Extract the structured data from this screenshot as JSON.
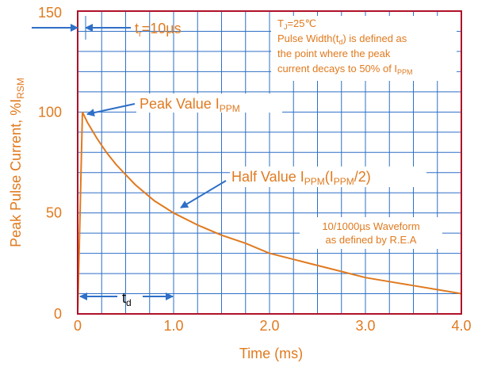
{
  "colors": {
    "curve": "#E07A1F",
    "text_orange": "#E07A1F",
    "grid": "#2E6FC7",
    "frame": "#B0122A",
    "arrow": "#2E6FC7"
  },
  "chart_data": {
    "type": "line",
    "title": "",
    "xlabel": "Time (ms)",
    "ylabel_main": "Peak Pulse Current, %I",
    "ylabel_sub": "RSM",
    "xlim": [
      0,
      4.0
    ],
    "ylim": [
      0,
      150
    ],
    "x_ticks": [
      {
        "value": 0,
        "label": "0"
      },
      {
        "value": 1.0,
        "label": "1.0"
      },
      {
        "value": 2.0,
        "label": "2.0"
      },
      {
        "value": 3.0,
        "label": "3.0"
      },
      {
        "value": 4.0,
        "label": "4.0"
      }
    ],
    "y_ticks": [
      {
        "value": 0,
        "label": "0"
      },
      {
        "value": 50,
        "label": "50"
      },
      {
        "value": 100,
        "label": "100"
      },
      {
        "value": 150,
        "label": "150"
      }
    ],
    "grid": true,
    "series": [
      {
        "x": [
          0,
          0.05,
          0.1,
          0.2,
          0.3,
          0.4,
          0.5,
          0.6,
          0.7,
          0.8,
          0.9,
          1.0,
          1.25,
          1.5,
          1.75,
          2.0,
          2.25,
          2.5,
          2.75,
          3.0,
          3.25,
          3.5,
          3.75,
          4.0
        ],
        "y": [
          0,
          100,
          95,
          87,
          80,
          74,
          69,
          64,
          60,
          56,
          53,
          50,
          44,
          39,
          35,
          30,
          27,
          24,
          21,
          18,
          16,
          14,
          12,
          10
        ]
      }
    ],
    "annotations": {
      "tr": {
        "base": "t",
        "sub": "r",
        "rest": "=10µs"
      },
      "conditions": {
        "line1_base": "T",
        "line1_sub": "J",
        "line1_rest": "=25℃",
        "line2_base": "Pulse Width(t",
        "line2_sub": "d",
        "line2_rest": ") is defined as",
        "line3": "the point where the peak",
        "line4_base": "current decays to 50% of I",
        "line4_sub": "PPM"
      },
      "peak": {
        "base": "Peak Value I",
        "sub": "PPM"
      },
      "half": {
        "base": "Half Value I",
        "sub1": "PPM",
        "mid": "(I",
        "sub2": "PPM",
        "end": "/2)"
      },
      "waveform": {
        "line1": "10/1000µs Waveform",
        "line2": "as defined by R.E.A"
      },
      "td": {
        "base": "t",
        "sub": "d"
      }
    }
  }
}
